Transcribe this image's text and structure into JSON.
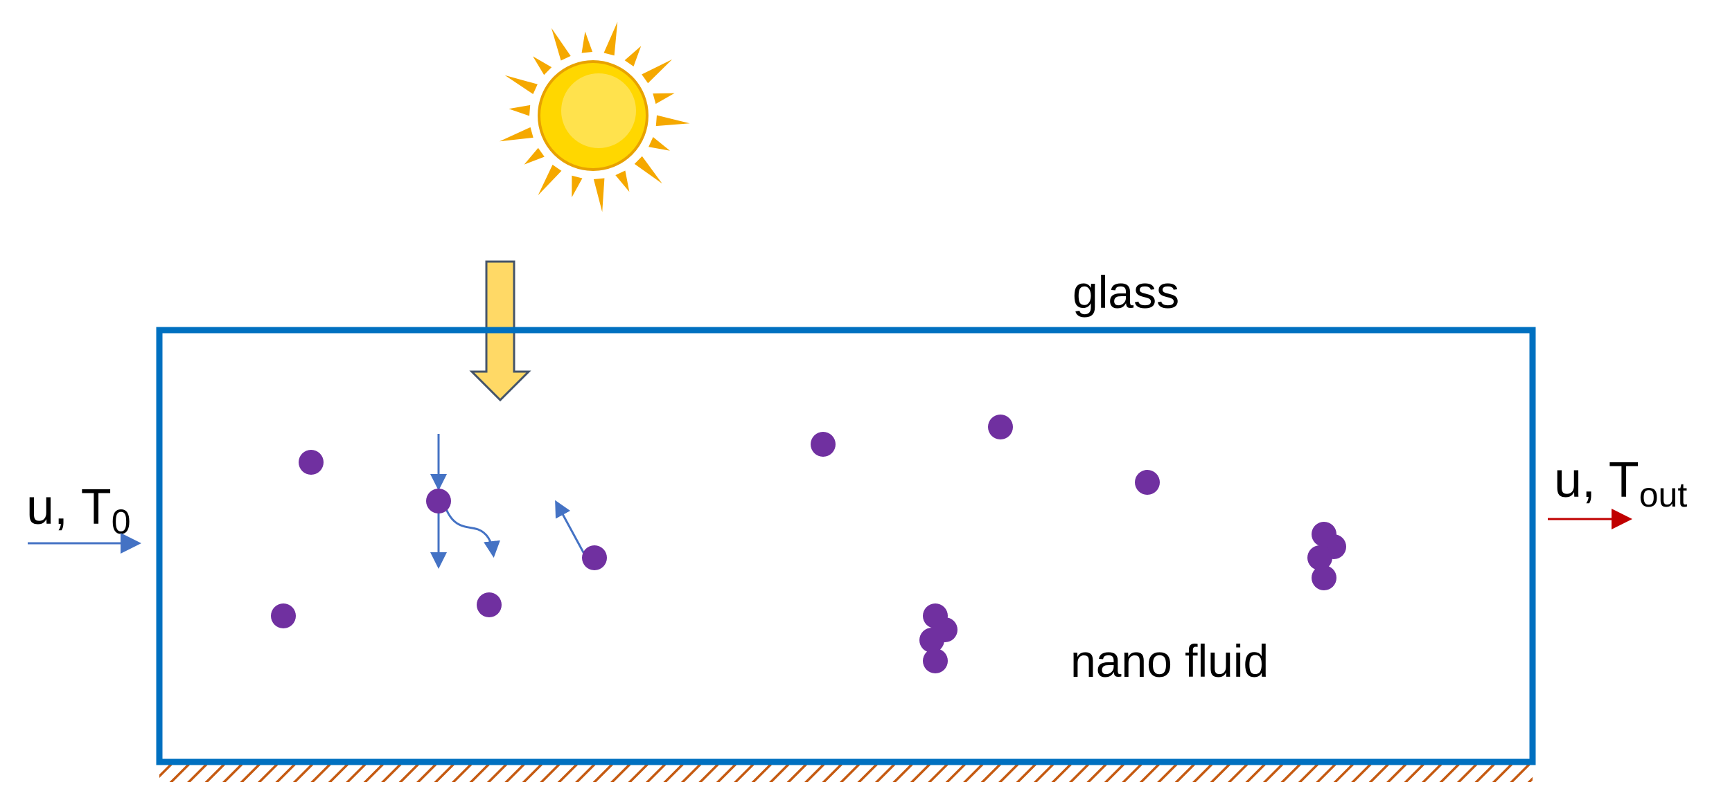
{
  "diagram": {
    "title_glass": "glass",
    "title_fluid": "nano fluid",
    "inlet": {
      "label_main": "u, T",
      "label_sub": "0"
    },
    "outlet": {
      "label_main": "u, T",
      "label_sub": "out"
    },
    "colors": {
      "channel_border": "#0070C0",
      "particle": "#7030A0",
      "flow_arrow": "#4472C4",
      "outlet_arrow": "#C00000",
      "sun_core": "#FFD700",
      "sun_rays": "#F5A800",
      "light_arrow_fill": "#FFD966",
      "light_arrow_stroke": "#44546A",
      "hatch": "#C55A11"
    },
    "icons": [
      "sun-icon",
      "light-beam-arrow-icon",
      "hatched-wall-icon"
    ]
  }
}
